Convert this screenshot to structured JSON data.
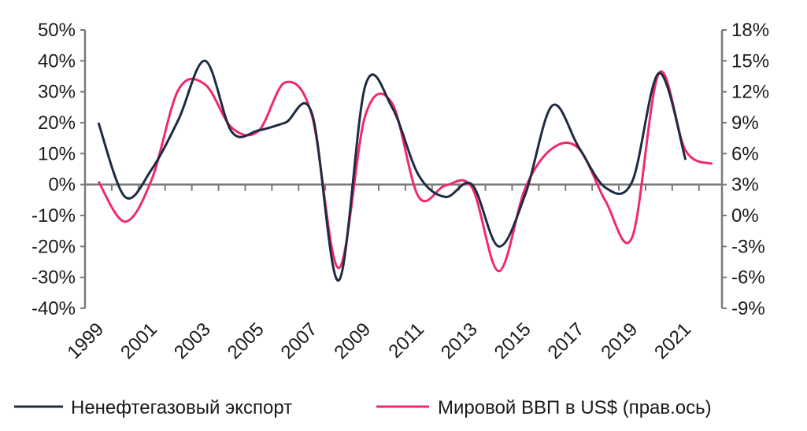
{
  "chart_data": {
    "type": "line",
    "title": "",
    "x": [
      1999,
      2000,
      2001,
      2002,
      2003,
      2004,
      2005,
      2006,
      2007,
      2008,
      2009,
      2010,
      2011,
      2012,
      2013,
      2014,
      2015,
      2016,
      2017,
      2018,
      2019,
      2020,
      2021,
      2022
    ],
    "x_tick_labels": [
      "1999",
      "2001",
      "2003",
      "2005",
      "2007",
      "2009",
      "2011",
      "2013",
      "2015",
      "2017",
      "2019",
      "2021"
    ],
    "y_left": {
      "range": [
        -40,
        50
      ],
      "ticks": [
        50,
        40,
        30,
        20,
        10,
        0,
        -10,
        -20,
        -30,
        -40
      ],
      "tick_labels": [
        "50%",
        "40%",
        "30%",
        "20%",
        "10%",
        "0%",
        "-10%",
        "-20%",
        "-30%",
        "-40%"
      ]
    },
    "y_right": {
      "range": [
        -9,
        18
      ],
      "ticks": [
        18,
        15,
        12,
        9,
        6,
        3,
        0,
        -3,
        -6,
        -9
      ],
      "tick_labels": [
        "18%",
        "15%",
        "12%",
        "9%",
        "6%",
        "3%",
        "0%",
        "-3%",
        "-6%",
        "-9%"
      ]
    },
    "series": [
      {
        "name": "Ненефтегазовый экспорт",
        "axis": "left",
        "color": "#1f2a44",
        "values": [
          20,
          -4,
          5,
          21,
          40,
          17,
          17.5,
          20,
          23,
          -31,
          32,
          25,
          3,
          -4,
          0,
          -20,
          -3,
          25.5,
          12,
          -1,
          1,
          36,
          8,
          null
        ]
      },
      {
        "name": "Мировой ВВП в US$ (прав.ось)",
        "axis": "right",
        "color": "#ee2a6e",
        "values": [
          3.3,
          -0.6,
          3.5,
          12.2,
          12.7,
          8.5,
          8.2,
          12.9,
          9.7,
          -5.1,
          9.7,
          10.9,
          1.8,
          2.9,
          2.7,
          -5.4,
          2.7,
          6.5,
          6.5,
          1.4,
          -2.1,
          13.8,
          6.3,
          5.0
        ]
      }
    ],
    "legend": {
      "placement": "bottom",
      "entries": [
        "Ненефтегазовый экспорт",
        "Мировой ВВП в US$ (прав.ось)"
      ]
    },
    "grid": false
  }
}
